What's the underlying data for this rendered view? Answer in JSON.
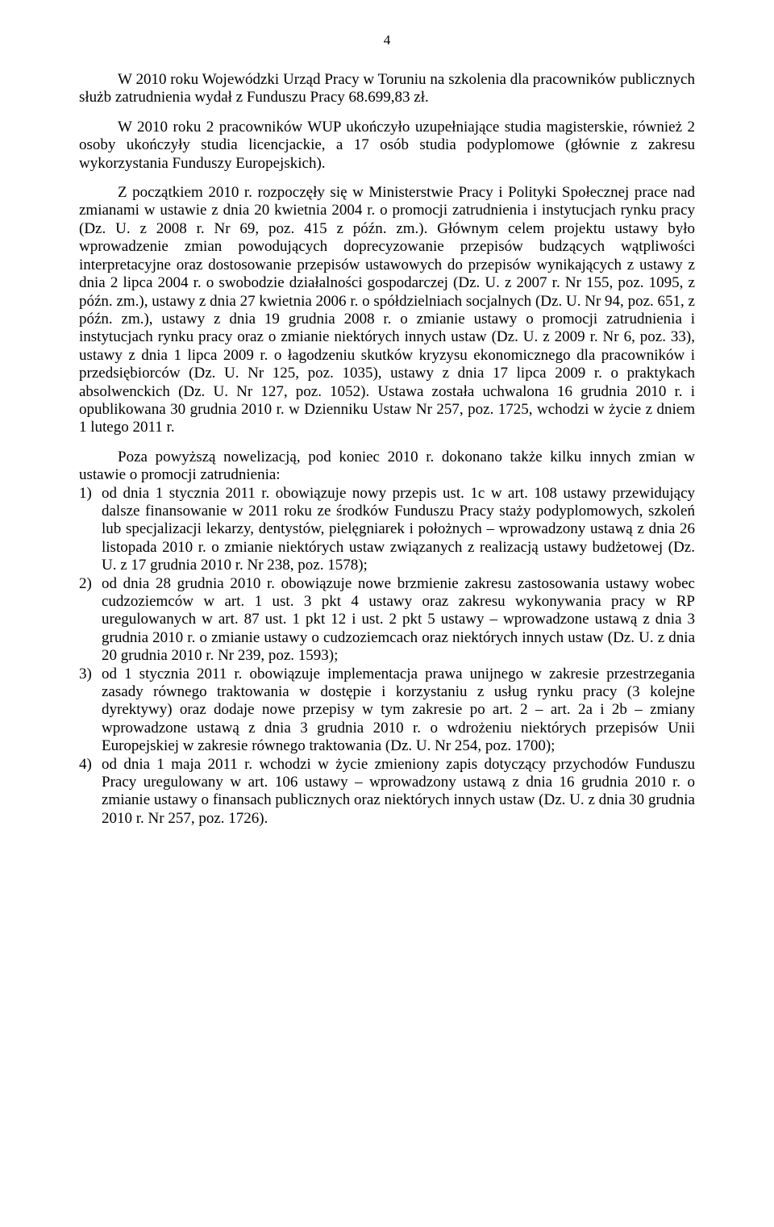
{
  "page_number": "4",
  "p1": "W 2010 roku Wojewódzki Urząd Pracy w Toruniu na szkolenia dla pracowników publicznych służb zatrudnienia wydał z Funduszu Pracy 68.699,83 zł.",
  "p2": "W 2010 roku 2 pracowników WUP ukończyło uzupełniające studia magisterskie, również 2 osoby ukończyły studia licencjackie, a 17 osób studia podyplomowe (głównie z zakresu wykorzystania Funduszy Europejskich).",
  "p3": "Z początkiem 2010 r. rozpoczęły się w Ministerstwie Pracy i Polityki Społecznej prace nad zmianami w ustawie z dnia 20 kwietnia 2004 r. o promocji zatrudnienia i instytucjach rynku pracy (Dz. U. z 2008 r. Nr 69, poz. 415 z późn. zm.). Głównym celem projektu ustawy było wprowadzenie zmian powodujących doprecyzowanie przepisów budzących wątpliwości interpretacyjne oraz dostosowanie przepisów ustawowych do przepisów wynikających z ustawy z dnia 2 lipca 2004 r. o swobodzie działalności gospodarczej (Dz. U. z 2007 r. Nr 155, poz. 1095, z późn. zm.), ustawy z dnia 27 kwietnia 2006 r. o spółdzielniach socjalnych (Dz. U. Nr 94, poz. 651, z późn. zm.), ustawy z dnia 19 grudnia 2008 r. o zmianie ustawy o promocji zatrudnienia i instytucjach rynku pracy oraz o zmianie niektórych innych ustaw (Dz. U. z 2009 r. Nr 6, poz. 33), ustawy z dnia 1 lipca 2009 r. o łagodzeniu skutków kryzysu ekonomicznego dla pracowników i przedsiębiorców (Dz. U. Nr 125, poz. 1035), ustawy z dnia 17 lipca 2009 r. o praktykach absolwenckich (Dz. U. Nr 127, poz. 1052). Ustawa została uchwalona 16 grudnia 2010 r. i opublikowana 30 grudnia 2010 r. w Dzienniku Ustaw Nr 257, poz. 1725, wchodzi w życie z dniem 1 lutego 2011 r.",
  "p4": "Poza powyższą nowelizacją, pod koniec 2010 r. dokonano także kilku innych zmian w ustawie o promocji zatrudnienia:",
  "list": [
    {
      "n": "1)",
      "t": "od dnia 1 stycznia 2011 r. obowiązuje nowy przepis ust. 1c w art. 108 ustawy przewidujący dalsze finansowanie w 2011 roku ze środków Funduszu Pracy staży podyplomowych, szkoleń lub specjalizacji lekarzy, dentystów, pielęgniarek i położnych – wprowadzony ustawą z dnia 26 listopada 2010 r. o zmianie niektórych ustaw związanych z realizacją ustawy budżetowej (Dz. U. z 17 grudnia 2010 r. Nr 238, poz. 1578);"
    },
    {
      "n": "2)",
      "t": "od dnia 28 grudnia 2010 r. obowiązuje nowe brzmienie zakresu zastosowania ustawy wobec cudzoziemców w art. 1 ust. 3 pkt 4 ustawy oraz zakresu wykonywania pracy w RP uregulowanych w art. 87 ust. 1 pkt 12 i ust. 2 pkt 5 ustawy – wprowadzone ustawą z dnia 3 grudnia 2010 r. o zmianie ustawy o cudzoziemcach oraz niektórych innych ustaw (Dz. U. z dnia 20 grudnia 2010 r. Nr 239, poz. 1593);"
    },
    {
      "n": "3)",
      "t": "od 1 stycznia 2011 r. obowiązuje implementacja prawa unijnego w zakresie przestrzegania zasady równego traktowania w dostępie i korzystaniu z usług rynku pracy (3 kolejne dyrektywy) oraz dodaje nowe przepisy w tym zakresie po art. 2 – art. 2a i 2b – zmiany wprowadzone ustawą z dnia 3 grudnia 2010 r. o wdrożeniu niektórych przepisów Unii Europejskiej w zakresie równego traktowania (Dz. U. Nr 254, poz. 1700);"
    },
    {
      "n": "4)",
      "t": "od dnia 1 maja 2011 r. wchodzi w życie zmieniony zapis dotyczący przychodów Funduszu Pracy uregulowany w art. 106 ustawy – wprowadzony ustawą z dnia 16 grudnia 2010 r. o zmianie ustawy o finansach publicznych oraz niektórych innych ustaw (Dz. U. z dnia 30 grudnia 2010 r. Nr 257, poz. 1726)."
    }
  ]
}
